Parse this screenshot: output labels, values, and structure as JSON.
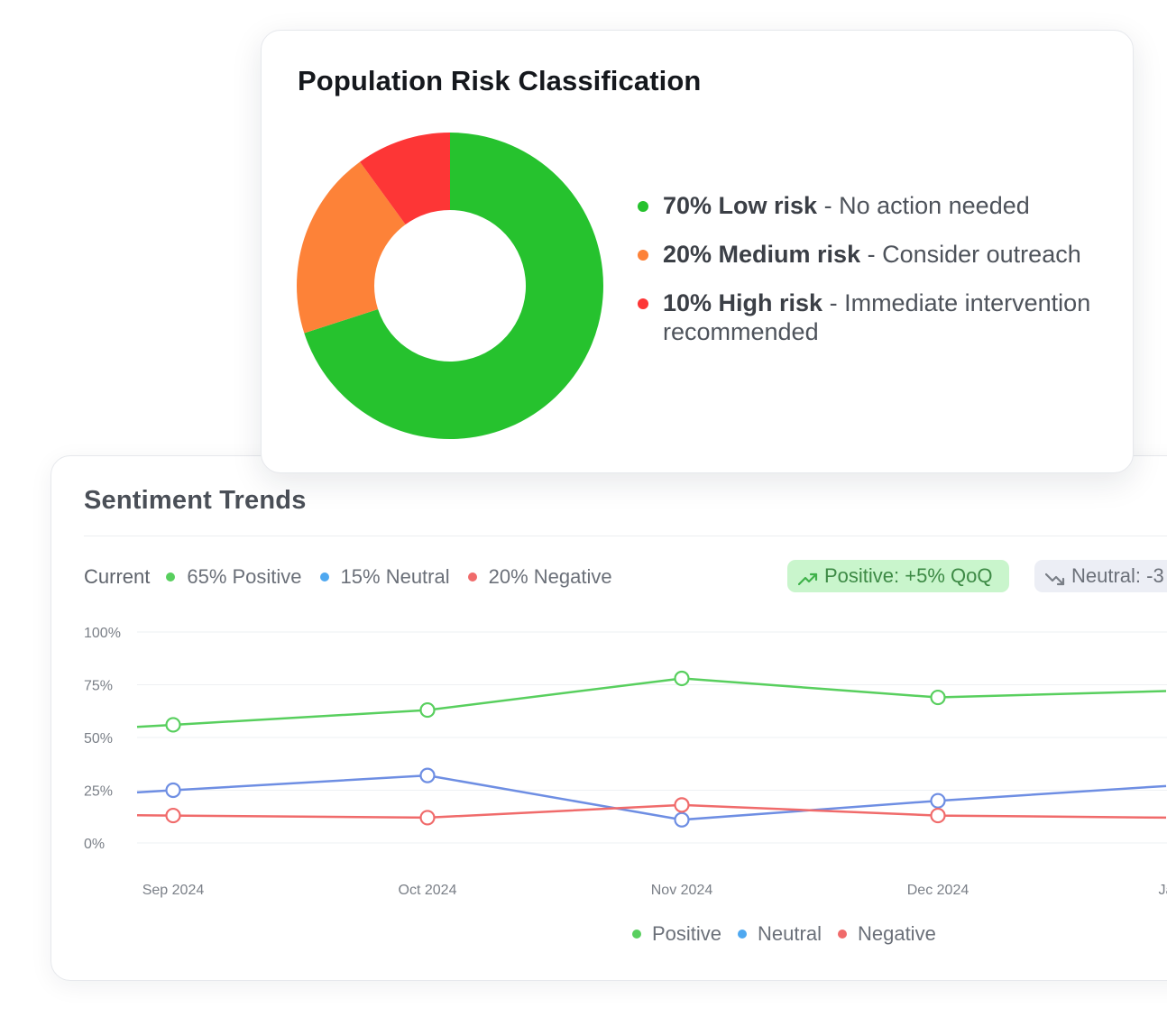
{
  "risk_card": {
    "title": "Population Risk Classification",
    "items": [
      {
        "strong": "70% Low risk",
        "sep": " - ",
        "desc": "No action needed",
        "color": "#26c22e"
      },
      {
        "strong": "20% Medium risk",
        "sep": " - ",
        "desc": "Consider outreach",
        "color": "#fd8238"
      },
      {
        "strong": "10% High risk",
        "sep": " - ",
        "desc": "Immediate intervention recommended",
        "color": "#fd3636"
      }
    ]
  },
  "sentiment_card": {
    "title": "Sentiment Trends",
    "current_label": "Current",
    "current": [
      {
        "label": "65% Positive",
        "color": "#58cf5e"
      },
      {
        "label": "15% Neutral",
        "color": "#4fa8f0"
      },
      {
        "label": "20% Negative",
        "color": "#f06b6b"
      }
    ],
    "badge_positive": {
      "label": "Positive: +5% QoQ",
      "icon": "trending-up-icon"
    },
    "badge_neutral": {
      "label": "Neutral: -3",
      "icon": "trending-down-icon"
    }
  },
  "chart_data": [
    {
      "type": "pie",
      "title": "Population Risk Classification",
      "categories": [
        "Low risk",
        "Medium risk",
        "High risk"
      ],
      "values": [
        70,
        20,
        10
      ],
      "colors": [
        "#26c22e",
        "#fd8238",
        "#fd3636"
      ],
      "donut": true
    },
    {
      "type": "line",
      "title": "Sentiment Trends",
      "categories": [
        "Sep 2024",
        "Oct 2024",
        "Nov 2024",
        "Dec 2024",
        "Ja"
      ],
      "ylim": [
        0,
        100
      ],
      "y_ticks": [
        "100%",
        "75%",
        "50%",
        "25%",
        "0%"
      ],
      "grid": true,
      "legend": "bottom",
      "series": [
        {
          "name": "Positive",
          "color": "#58cf5e",
          "values": [
            56,
            63,
            78,
            69,
            72
          ]
        },
        {
          "name": "Neutral",
          "color": "#6e8ee3",
          "values": [
            25,
            32,
            11,
            20,
            27
          ]
        },
        {
          "name": "Negative",
          "color": "#f06b6b",
          "values": [
            13,
            12,
            18,
            13,
            12
          ]
        }
      ],
      "legend_dot_colors": [
        "#58cf5e",
        "#4fa8f0",
        "#f06b6b"
      ]
    }
  ]
}
